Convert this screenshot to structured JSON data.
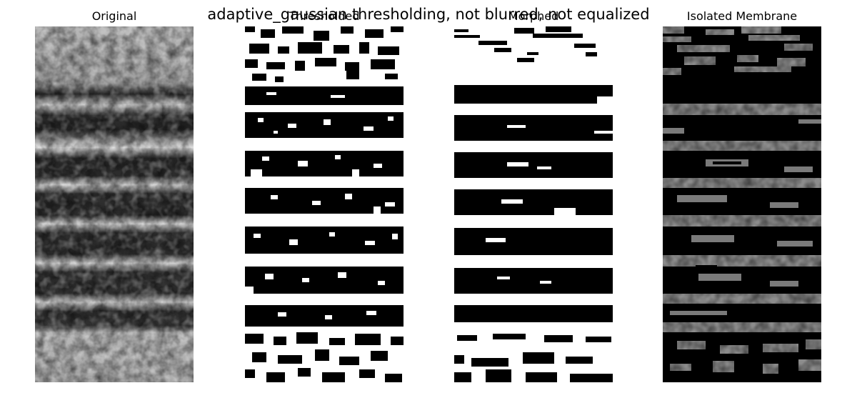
{
  "figure": {
    "suptitle": "adaptive_gaussian thresholding, not blurred, not equalized",
    "panels": [
      {
        "title": "Original"
      },
      {
        "title": "Thresholded"
      },
      {
        "title": "Morphed"
      },
      {
        "title": "Isolated Membrane"
      }
    ]
  },
  "palette": {
    "background": "#ffffff",
    "mask_foreground": "#000000",
    "mask_background": "#ffffff",
    "grayscale_dark": "#1a1a1a",
    "grayscale_light": "#d8d8d8"
  }
}
